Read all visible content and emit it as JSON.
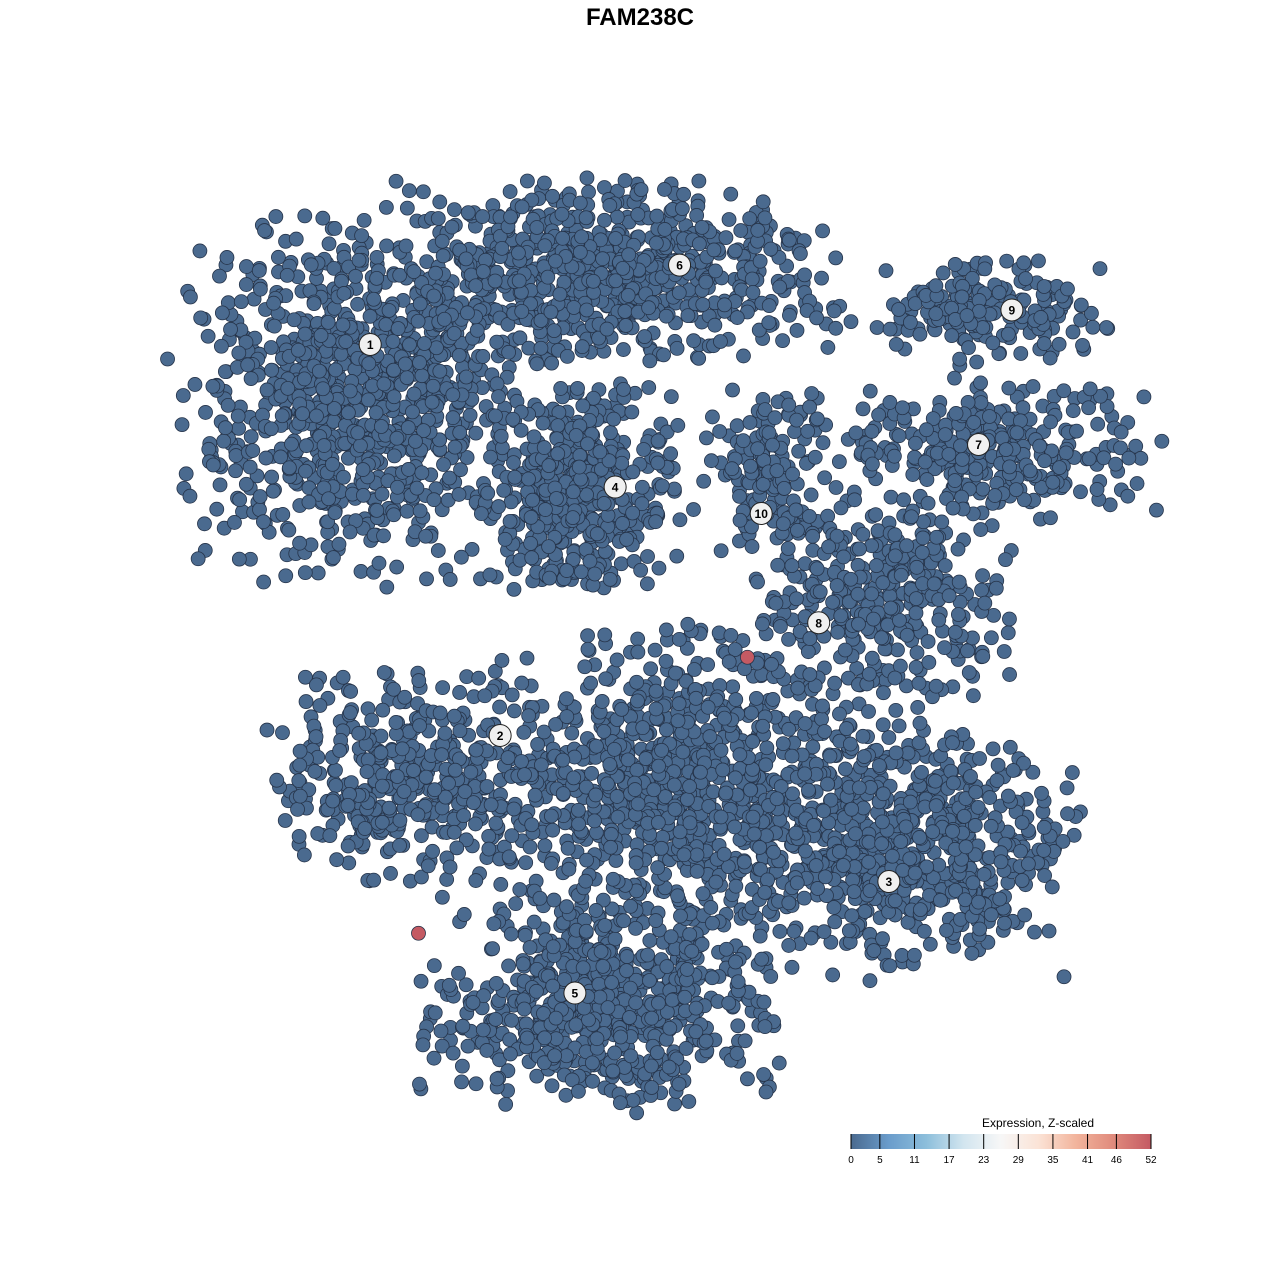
{
  "chart_data": {
    "type": "scatter",
    "title": "FAM238C",
    "xlabel": "",
    "ylabel": "",
    "grid": false,
    "point_color_low": "#4a6a8f",
    "point_color_high": "#c45a63",
    "clusters": [
      {
        "label": "1",
        "center": [
          -27,
          21
        ],
        "spread": [
          6.5,
          7
        ],
        "n": 900,
        "label_pos": [
          -25.2,
          25.7
        ]
      },
      {
        "label": "6",
        "center": [
          -5.2,
          32
        ],
        "spread": [
          9.5,
          3.5
        ],
        "n": 800,
        "label_pos": [
          1.7,
          32.6
        ]
      },
      {
        "label": "4",
        "center": [
          -7,
          13
        ],
        "spread": [
          4,
          4
        ],
        "n": 500,
        "label_pos": [
          -3.9,
          13.3
        ]
      },
      {
        "label": "9",
        "center": [
          28.7,
          28.7
        ],
        "spread": [
          4.8,
          2.2
        ],
        "n": 200,
        "label_pos": [
          30.6,
          28.7
        ]
      },
      {
        "label": "7",
        "center": [
          29,
          16.5
        ],
        "spread": [
          6.5,
          2.8
        ],
        "n": 320,
        "label_pos": [
          27.7,
          17
        ]
      },
      {
        "label": "10",
        "center": [
          9.6,
          14.8
        ],
        "spread": [
          2.6,
          3.4
        ],
        "n": 150,
        "label_pos": [
          8.8,
          11
        ]
      },
      {
        "label": "8",
        "center": [
          19.1,
          3.5
        ],
        "spread": [
          5,
          4.2
        ],
        "n": 350,
        "label_pos": [
          13.8,
          1.5
        ]
      },
      {
        "label": "2",
        "center": [
          -22.6,
          -12.2
        ],
        "spread": [
          5.2,
          4.2
        ],
        "n": 400,
        "label_pos": [
          -13.9,
          -8.3
        ]
      },
      {
        "label": "3",
        "center": [
          20.9,
          -18.3
        ],
        "spread": [
          7,
          5
        ],
        "n": 700,
        "label_pos": [
          19.9,
          -21
        ]
      },
      {
        "label": "5",
        "center": [
          -5.2,
          -31.3
        ],
        "spread": [
          7,
          4.3
        ],
        "n": 700,
        "label_pos": [
          -7.4,
          -30.7
        ]
      },
      {
        "label": "",
        "center": [
          1.7,
          -12.2
        ],
        "spread": [
          7.8,
          6
        ],
        "n": 900,
        "label_pos": null
      }
    ],
    "highlighted_points": [
      {
        "x": 7.6,
        "y": -1.5,
        "expression": 52
      },
      {
        "x": -21,
        "y": -25.5,
        "expression": 52
      }
    ],
    "baseline_expression": 0,
    "legend": {
      "title": "Expression, Z-scaled",
      "placement": "bottom-right",
      "ticks": [
        "0",
        "5",
        "11",
        "17",
        "23",
        "29",
        "35",
        "41",
        "46",
        "52"
      ],
      "range": [
        0,
        52
      ],
      "colors": [
        "#4a6a8f",
        "#6a9ccb",
        "#8cbedb",
        "#d2e5ef",
        "#f7f7f7",
        "#fbe3d6",
        "#f2b49c",
        "#e08a7c",
        "#c45a63"
      ]
    }
  }
}
